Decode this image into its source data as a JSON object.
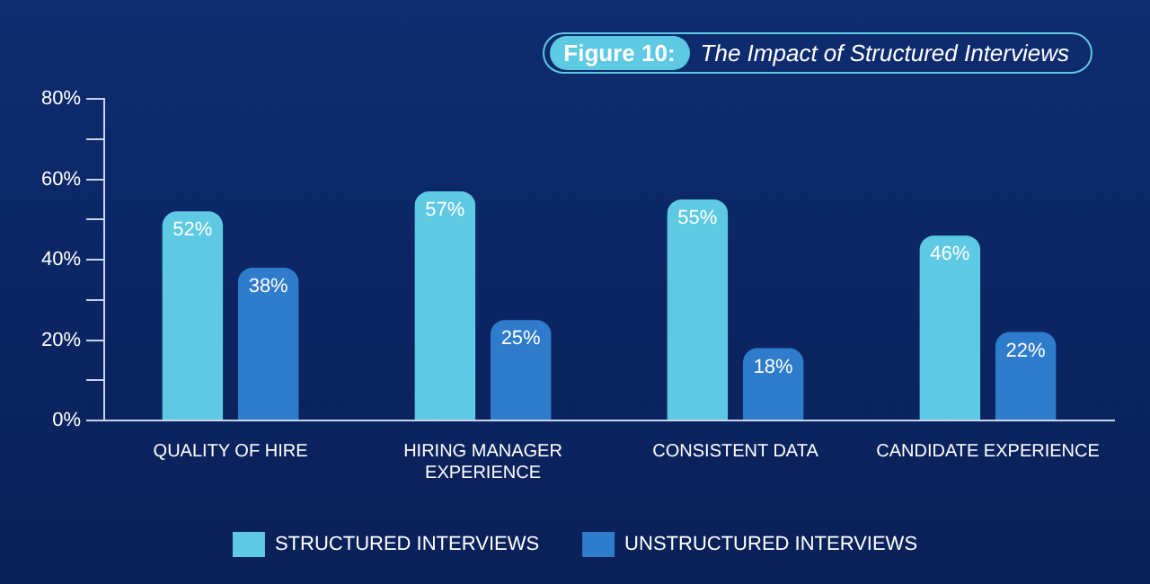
{
  "chart_data": {
    "type": "bar",
    "title": "Figure 10: The Impact of Structured Interviews",
    "categories": [
      "QUALITY OF HIRE",
      "HIRING MANAGER EXPERIENCE",
      "CONSISTENT DATA",
      "CANDIDATE EXPERIENCE"
    ],
    "series": [
      {
        "name": "STRUCTURED INTERVIEWS",
        "color": "#5ec9e2",
        "values": [
          52,
          57,
          55,
          46
        ],
        "value_labels": [
          "52%",
          "57%",
          "55%",
          "46%"
        ]
      },
      {
        "name": "UNSTRUCTURED INTERVIEWS",
        "color": "#2f7ccc",
        "values": [
          38,
          25,
          18,
          22
        ],
        "value_labels": [
          "38%",
          "25%",
          "18%",
          "22%"
        ]
      }
    ],
    "ylim": [
      0,
      80
    ],
    "yticks": [
      {
        "value": 0,
        "label": "0%"
      },
      {
        "value": 10,
        "label": null
      },
      {
        "value": 20,
        "label": "20%"
      },
      {
        "value": 30,
        "label": null
      },
      {
        "value": 40,
        "label": "40%"
      },
      {
        "value": 50,
        "label": null
      },
      {
        "value": 60,
        "label": "60%"
      },
      {
        "value": 70,
        "label": null
      },
      {
        "value": 80,
        "label": "80%"
      }
    ],
    "grid": false,
    "legend": "bottom"
  }
}
